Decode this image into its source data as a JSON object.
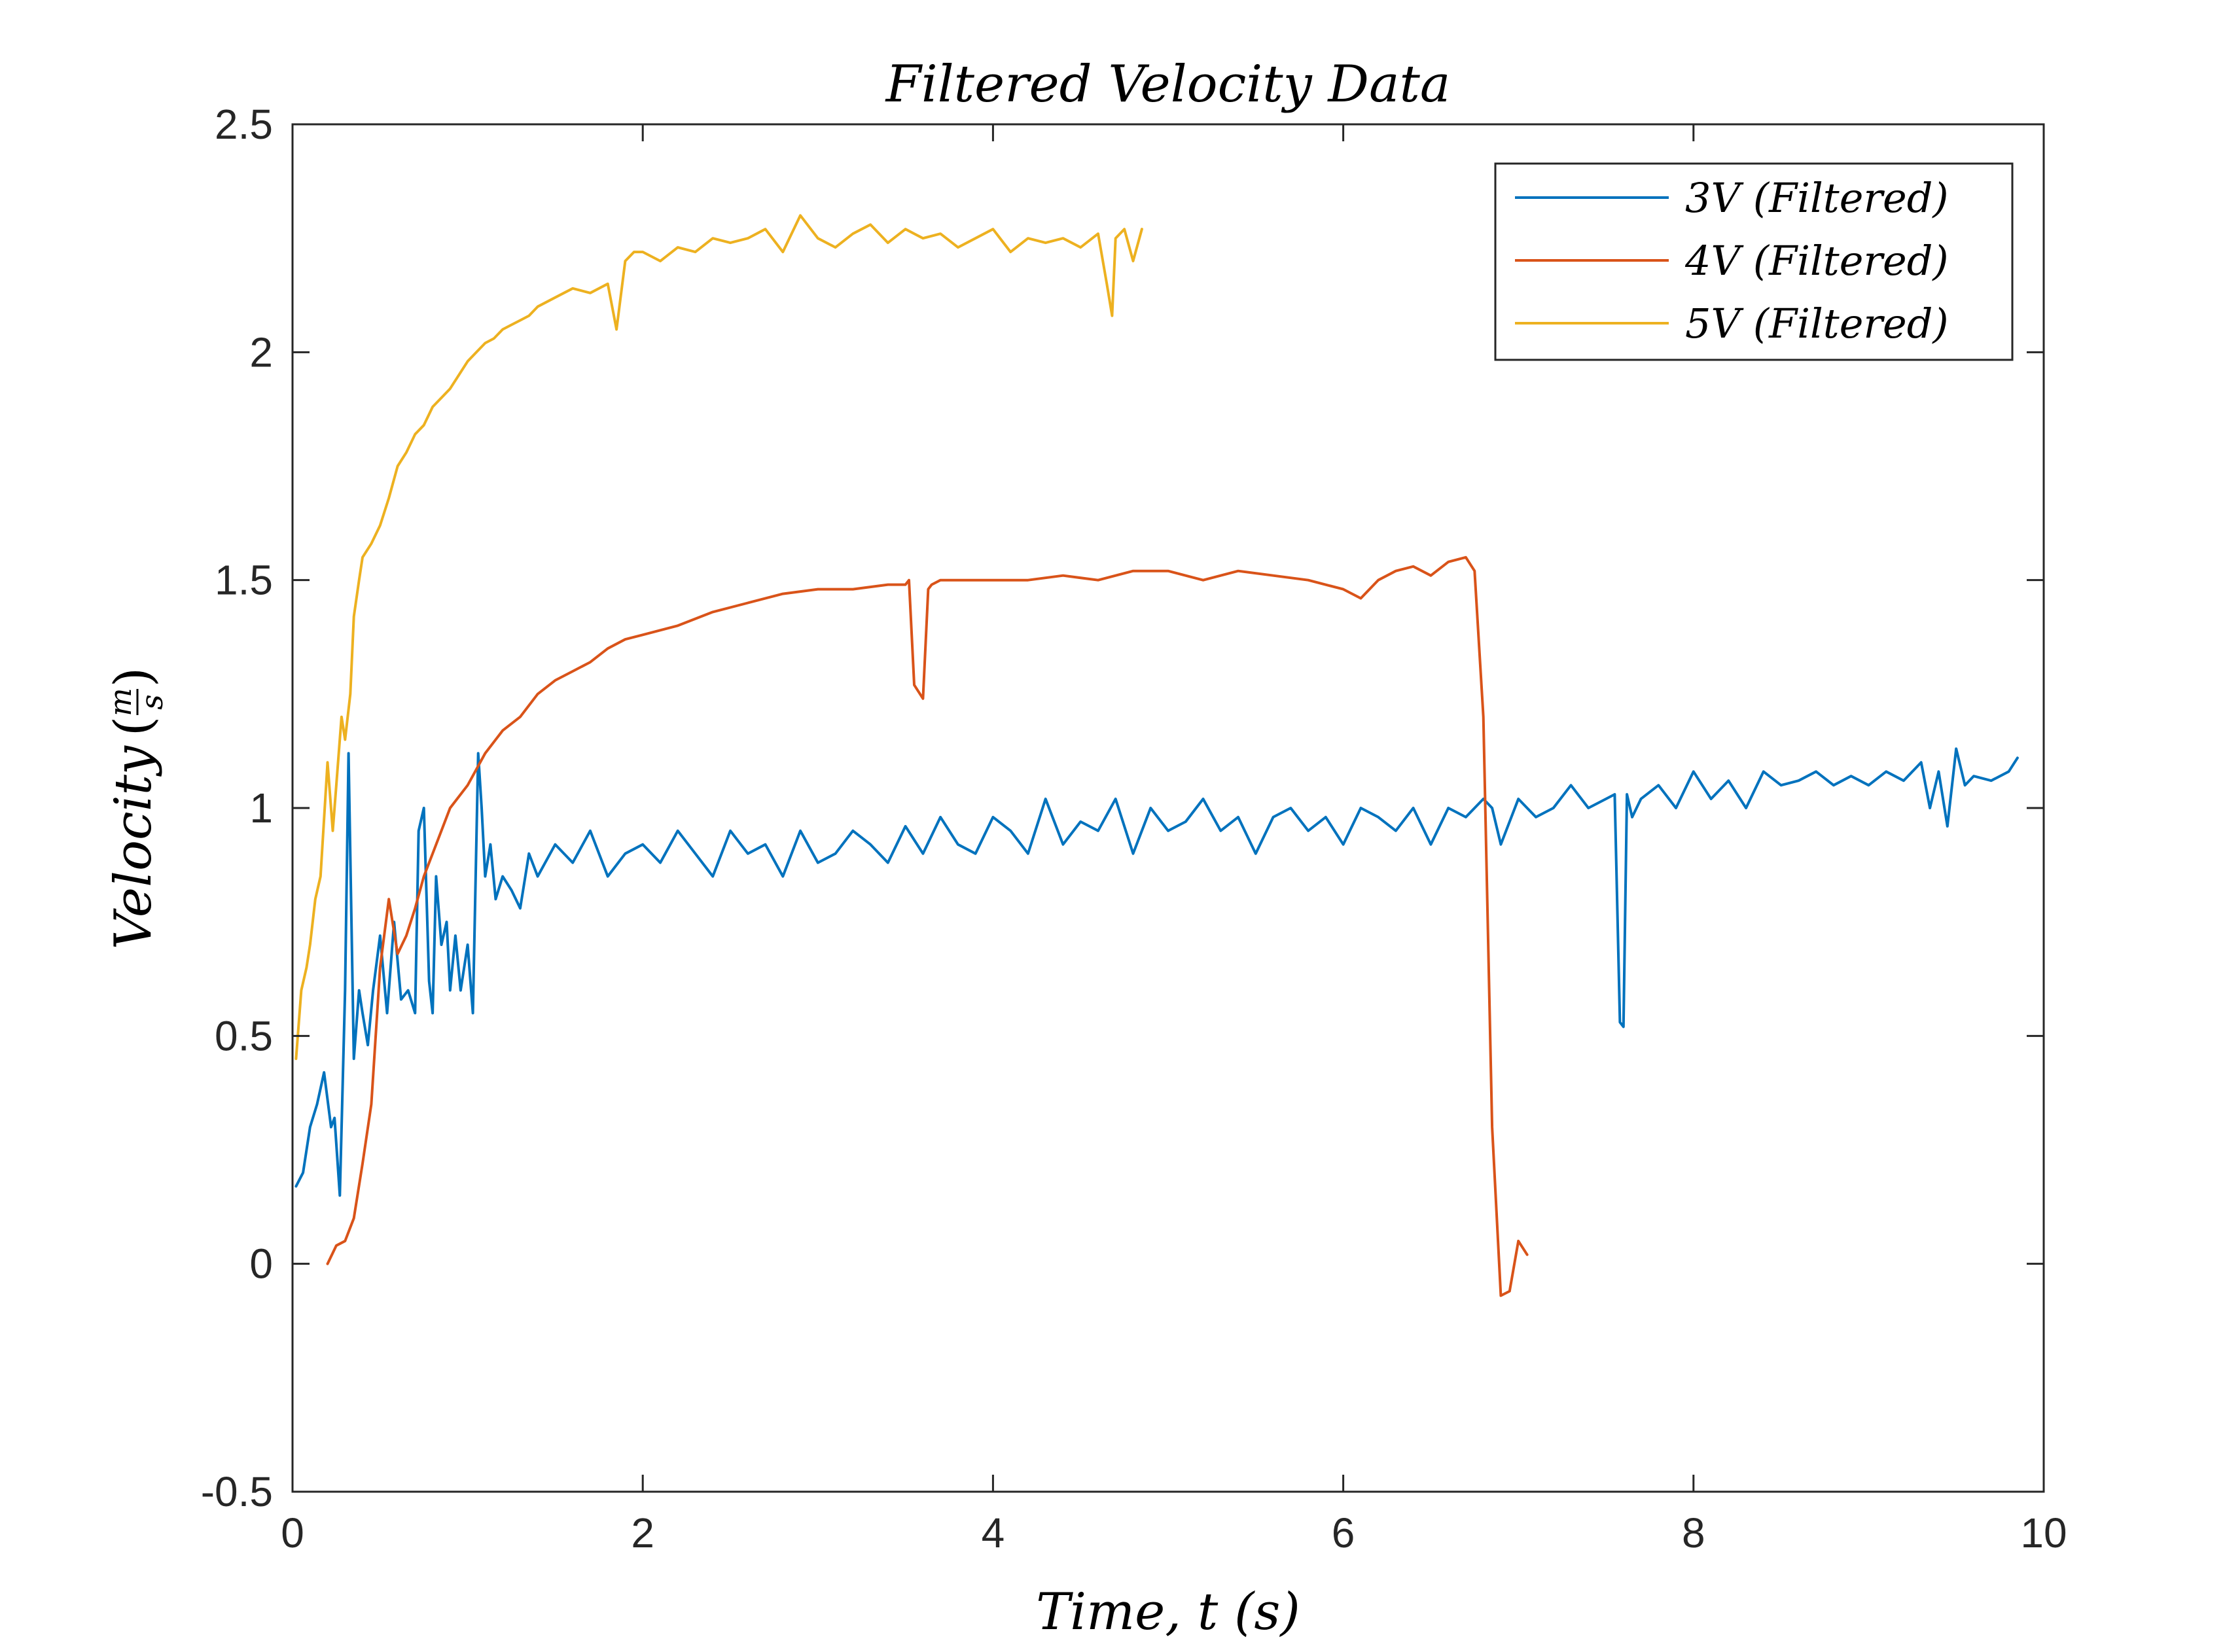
{
  "chart_data": {
    "type": "line",
    "title": "Filtered Velocity Data",
    "xlabel": "Time, t (s)",
    "ylabel": "Velocity",
    "ylabel_unit_num": "m",
    "ylabel_unit_den": "s",
    "xlim": [
      0,
      10
    ],
    "ylim": [
      -0.5,
      2.5
    ],
    "xticks": [
      0,
      2,
      4,
      6,
      8,
      10
    ],
    "xtick_labels": [
      "0",
      "2",
      "4",
      "6",
      "8",
      "10"
    ],
    "yticks": [
      -0.5,
      0,
      0.5,
      1,
      1.5,
      2,
      2.5
    ],
    "ytick_labels": [
      "-0.5",
      "0",
      "0.5",
      "1",
      "1.5",
      "2",
      "2.5"
    ],
    "grid": false,
    "legend_position": "top-right",
    "series": [
      {
        "name": "3V (Filtered)",
        "color": "#0072BD",
        "x": [
          0.02,
          0.06,
          0.1,
          0.14,
          0.18,
          0.22,
          0.24,
          0.27,
          0.3,
          0.32,
          0.35,
          0.38,
          0.4,
          0.43,
          0.46,
          0.5,
          0.54,
          0.58,
          0.62,
          0.66,
          0.7,
          0.72,
          0.75,
          0.78,
          0.8,
          0.82,
          0.85,
          0.88,
          0.9,
          0.93,
          0.96,
          1.0,
          1.03,
          1.06,
          1.08,
          1.1,
          1.13,
          1.16,
          1.2,
          1.25,
          1.3,
          1.35,
          1.4,
          1.5,
          1.6,
          1.7,
          1.8,
          1.9,
          2.0,
          2.1,
          2.2,
          2.3,
          2.4,
          2.5,
          2.6,
          2.7,
          2.8,
          2.9,
          3.0,
          3.1,
          3.2,
          3.3,
          3.4,
          3.5,
          3.6,
          3.7,
          3.8,
          3.9,
          4.0,
          4.1,
          4.2,
          4.3,
          4.4,
          4.5,
          4.6,
          4.7,
          4.8,
          4.9,
          5.0,
          5.1,
          5.2,
          5.3,
          5.4,
          5.5,
          5.6,
          5.7,
          5.8,
          5.9,
          6.0,
          6.1,
          6.2,
          6.3,
          6.4,
          6.5,
          6.6,
          6.7,
          6.8,
          6.85,
          6.9,
          7.0,
          7.1,
          7.2,
          7.3,
          7.4,
          7.5,
          7.55,
          7.58,
          7.6,
          7.62,
          7.65,
          7.7,
          7.8,
          7.9,
          8.0,
          8.1,
          8.2,
          8.3,
          8.4,
          8.5,
          8.6,
          8.7,
          8.8,
          8.9,
          9.0,
          9.1,
          9.2,
          9.3,
          9.35,
          9.4,
          9.45,
          9.5,
          9.55,
          9.6,
          9.7,
          9.8,
          9.85
        ],
        "y": [
          0.17,
          0.2,
          0.3,
          0.35,
          0.42,
          0.3,
          0.32,
          0.15,
          0.6,
          1.12,
          0.45,
          0.6,
          0.55,
          0.48,
          0.6,
          0.72,
          0.55,
          0.75,
          0.58,
          0.6,
          0.55,
          0.95,
          1.0,
          0.62,
          0.55,
          0.85,
          0.7,
          0.75,
          0.6,
          0.72,
          0.6,
          0.7,
          0.55,
          1.12,
          1.0,
          0.85,
          0.92,
          0.8,
          0.85,
          0.82,
          0.78,
          0.9,
          0.85,
          0.92,
          0.88,
          0.95,
          0.85,
          0.9,
          0.92,
          0.88,
          0.95,
          0.9,
          0.85,
          0.95,
          0.9,
          0.92,
          0.85,
          0.95,
          0.88,
          0.9,
          0.95,
          0.92,
          0.88,
          0.96,
          0.9,
          0.98,
          0.92,
          0.9,
          0.98,
          0.95,
          0.9,
          1.02,
          0.92,
          0.97,
          0.95,
          1.02,
          0.9,
          1.0,
          0.95,
          0.97,
          1.02,
          0.95,
          0.98,
          0.9,
          0.98,
          1.0,
          0.95,
          0.98,
          0.92,
          1.0,
          0.98,
          0.95,
          1.0,
          0.92,
          1.0,
          0.98,
          1.02,
          1.0,
          0.92,
          1.02,
          0.98,
          1.0,
          1.05,
          1.0,
          1.02,
          1.03,
          0.53,
          0.52,
          1.03,
          0.98,
          1.02,
          1.05,
          1.0,
          1.08,
          1.02,
          1.06,
          1.0,
          1.08,
          1.05,
          1.06,
          1.08,
          1.05,
          1.07,
          1.05,
          1.08,
          1.06,
          1.1,
          1.0,
          1.08,
          0.96,
          1.13,
          1.05,
          1.07,
          1.06,
          1.08,
          1.11
        ]
      },
      {
        "name": "4V (Filtered)",
        "color": "#D95319",
        "x": [
          0.2,
          0.25,
          0.3,
          0.35,
          0.4,
          0.45,
          0.5,
          0.55,
          0.6,
          0.65,
          0.7,
          0.75,
          0.8,
          0.9,
          1.0,
          1.1,
          1.2,
          1.3,
          1.4,
          1.5,
          1.6,
          1.7,
          1.8,
          1.9,
          2.0,
          2.2,
          2.4,
          2.6,
          2.8,
          3.0,
          3.2,
          3.4,
          3.5,
          3.52,
          3.55,
          3.6,
          3.63,
          3.65,
          3.7,
          3.8,
          3.9,
          4.0,
          4.2,
          4.4,
          4.6,
          4.8,
          5.0,
          5.2,
          5.4,
          5.6,
          5.8,
          6.0,
          6.1,
          6.2,
          6.3,
          6.4,
          6.5,
          6.6,
          6.7,
          6.75,
          6.8,
          6.85,
          6.9,
          6.95,
          7.0,
          7.05
        ],
        "y": [
          0.0,
          0.04,
          0.05,
          0.1,
          0.22,
          0.35,
          0.65,
          0.8,
          0.68,
          0.72,
          0.78,
          0.85,
          0.9,
          1.0,
          1.05,
          1.12,
          1.17,
          1.2,
          1.25,
          1.28,
          1.3,
          1.32,
          1.35,
          1.37,
          1.38,
          1.4,
          1.43,
          1.45,
          1.47,
          1.48,
          1.48,
          1.49,
          1.49,
          1.5,
          1.27,
          1.24,
          1.48,
          1.49,
          1.5,
          1.5,
          1.5,
          1.5,
          1.5,
          1.51,
          1.5,
          1.52,
          1.52,
          1.5,
          1.52,
          1.51,
          1.5,
          1.48,
          1.46,
          1.5,
          1.52,
          1.53,
          1.51,
          1.54,
          1.55,
          1.52,
          1.2,
          0.3,
          -0.07,
          -0.06,
          0.05,
          0.02
        ]
      },
      {
        "name": "5V (Filtered)",
        "color": "#EDB120",
        "x": [
          0.02,
          0.05,
          0.08,
          0.1,
          0.13,
          0.16,
          0.2,
          0.23,
          0.25,
          0.28,
          0.3,
          0.33,
          0.35,
          0.38,
          0.4,
          0.45,
          0.5,
          0.55,
          0.6,
          0.65,
          0.7,
          0.75,
          0.8,
          0.85,
          0.9,
          0.95,
          1.0,
          1.05,
          1.1,
          1.15,
          1.2,
          1.25,
          1.3,
          1.35,
          1.4,
          1.5,
          1.6,
          1.7,
          1.8,
          1.85,
          1.9,
          1.95,
          2.0,
          2.1,
          2.2,
          2.3,
          2.4,
          2.5,
          2.6,
          2.7,
          2.8,
          2.9,
          3.0,
          3.1,
          3.2,
          3.3,
          3.4,
          3.5,
          3.6,
          3.7,
          3.8,
          3.9,
          4.0,
          4.1,
          4.2,
          4.3,
          4.4,
          4.5,
          4.6,
          4.65,
          4.68,
          4.7,
          4.75,
          4.8,
          4.85
        ],
        "y": [
          0.45,
          0.6,
          0.65,
          0.7,
          0.8,
          0.85,
          1.1,
          0.95,
          1.05,
          1.2,
          1.15,
          1.25,
          1.42,
          1.5,
          1.55,
          1.58,
          1.62,
          1.68,
          1.75,
          1.78,
          1.82,
          1.84,
          1.88,
          1.9,
          1.92,
          1.95,
          1.98,
          2.0,
          2.02,
          2.03,
          2.05,
          2.06,
          2.07,
          2.08,
          2.1,
          2.12,
          2.14,
          2.13,
          2.15,
          2.05,
          2.2,
          2.22,
          2.22,
          2.2,
          2.23,
          2.22,
          2.25,
          2.24,
          2.25,
          2.27,
          2.22,
          2.3,
          2.25,
          2.23,
          2.26,
          2.28,
          2.24,
          2.27,
          2.25,
          2.26,
          2.23,
          2.25,
          2.27,
          2.22,
          2.25,
          2.24,
          2.25,
          2.23,
          2.26,
          2.15,
          2.08,
          2.25,
          2.27,
          2.2,
          2.27
        ]
      }
    ]
  }
}
